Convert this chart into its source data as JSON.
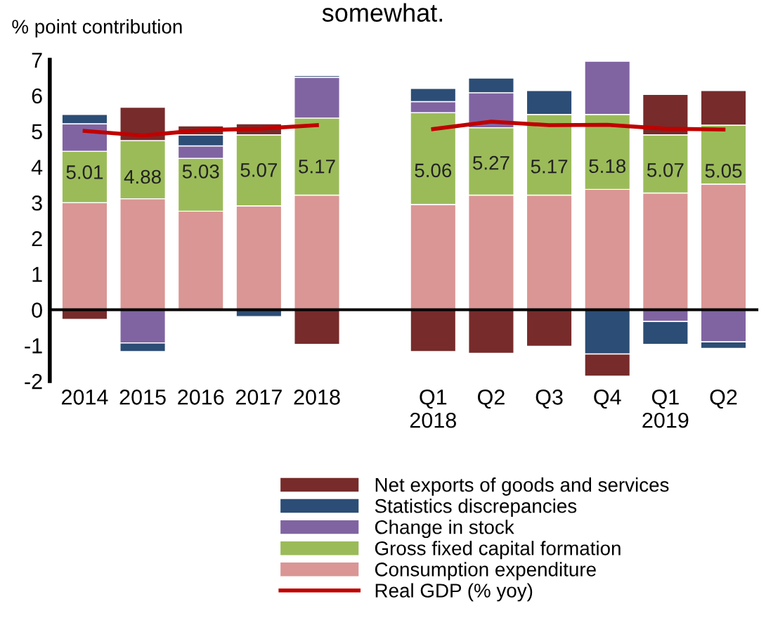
{
  "chart_data": {
    "type": "bar",
    "stacked": true,
    "title": "somewhat.",
    "ylabel": "% point contribution",
    "categories": [
      "2014",
      "2015",
      "2016",
      "2017",
      "2018",
      null,
      "Q1\n2018",
      "Q2",
      "Q3",
      "Q4",
      "Q1\n2019",
      "Q2"
    ],
    "series": [
      {
        "name": "Consumption expenditure",
        "color": "#d99694",
        "values": [
          3.0,
          3.11,
          2.76,
          2.91,
          3.21,
          null,
          2.95,
          3.21,
          3.21,
          3.37,
          3.27,
          3.52
        ]
      },
      {
        "name": "Gross fixed capital formation",
        "color": "#9bbb59",
        "values": [
          1.44,
          1.63,
          1.48,
          1.99,
          2.16,
          null,
          2.57,
          1.89,
          2.26,
          2.1,
          1.63,
          1.65
        ]
      },
      {
        "name": "Change in stock",
        "color": "#8064a2",
        "values": [
          0.77,
          -0.93,
          0.35,
          0,
          1.14,
          null,
          0.31,
          0.98,
          0,
          1.49,
          -0.33,
          -0.9
        ]
      },
      {
        "name": "Statistics discrepancies",
        "color": "#2c4d75",
        "values": [
          0.26,
          -0.24,
          0.31,
          -0.19,
          0.05,
          null,
          0.37,
          0.41,
          0.67,
          -1.24,
          -0.64,
          -0.18
        ]
      },
      {
        "name": "Net exports of goods and services",
        "color": "#772b2b",
        "values": [
          -0.27,
          0.93,
          0.25,
          0.31,
          -0.97,
          null,
          -1.17,
          -1.22,
          -1.02,
          -0.62,
          1.13,
          0.97
        ]
      },
      {
        "name": "Real GDP (% yoy)",
        "type": "line",
        "color": "#c00000",
        "values": [
          5.01,
          4.88,
          5.03,
          5.07,
          5.17,
          null,
          5.06,
          5.27,
          5.17,
          5.18,
          5.07,
          5.05
        ],
        "data_labels": true
      }
    ],
    "ylim": [
      -2,
      7
    ],
    "yticks": [
      -2,
      -1,
      0,
      1,
      2,
      3,
      4,
      5,
      6,
      7
    ],
    "legend": "bottom"
  }
}
